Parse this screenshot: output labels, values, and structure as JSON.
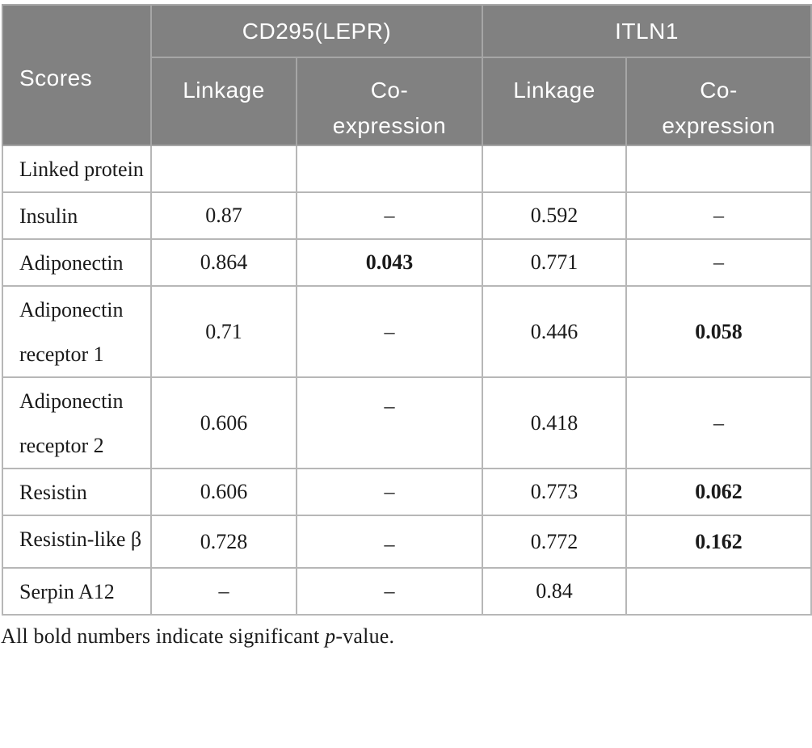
{
  "table": {
    "corner_label": "Scores",
    "column_groups": [
      {
        "label": "CD295(LEPR)",
        "columns": [
          "Linkage",
          "Co-expression"
        ]
      },
      {
        "label": "ITLN1",
        "columns": [
          "Linkage",
          "Co-expression"
        ]
      }
    ],
    "rows": [
      {
        "label": "Linked protein",
        "cells": [
          {
            "v": ""
          },
          {
            "v": ""
          },
          {
            "v": ""
          },
          {
            "v": ""
          }
        ]
      },
      {
        "label": "Insulin",
        "cells": [
          {
            "v": "0.87"
          },
          {
            "v": "–"
          },
          {
            "v": "0.592"
          },
          {
            "v": "–"
          }
        ]
      },
      {
        "label": "Adiponectin",
        "cells": [
          {
            "v": "0.864"
          },
          {
            "v": "0.043",
            "bold": true
          },
          {
            "v": "0.771"
          },
          {
            "v": "–"
          }
        ]
      },
      {
        "label": "Adiponectin receptor 1",
        "cells": [
          {
            "v": "0.71"
          },
          {
            "v": "–"
          },
          {
            "v": "0.446"
          },
          {
            "v": "0.058",
            "bold": true
          }
        ]
      },
      {
        "label": "Adiponectin receptor 2",
        "cells": [
          {
            "v": "0.606"
          },
          {
            "v": "–",
            "valign": "top"
          },
          {
            "v": "0.418"
          },
          {
            "v": "–"
          }
        ]
      },
      {
        "label": "Resistin",
        "cells": [
          {
            "v": "0.606"
          },
          {
            "v": "–"
          },
          {
            "v": "0.773"
          },
          {
            "v": "0.062",
            "bold": true
          }
        ]
      },
      {
        "label": "Resistin-like β",
        "cells": [
          {
            "v": "0.728"
          },
          {
            "v": "–",
            "valign": "top"
          },
          {
            "v": "0.772"
          },
          {
            "v": "0.162",
            "bold": true
          }
        ]
      },
      {
        "label": "Serpin A12",
        "cells": [
          {
            "v": "–"
          },
          {
            "v": "–"
          },
          {
            "v": "0.84"
          },
          {
            "v": ""
          }
        ]
      }
    ]
  },
  "footnote": {
    "prefix": "All bold numbers indicate significant ",
    "italic_term": "p",
    "suffix": "-value."
  },
  "colors": {
    "header_bg": "#818181",
    "header_text": "#ffffff",
    "header_border": "#a6a6a6",
    "body_border": "#b7b7b7",
    "body_text": "#1a1a1a"
  }
}
